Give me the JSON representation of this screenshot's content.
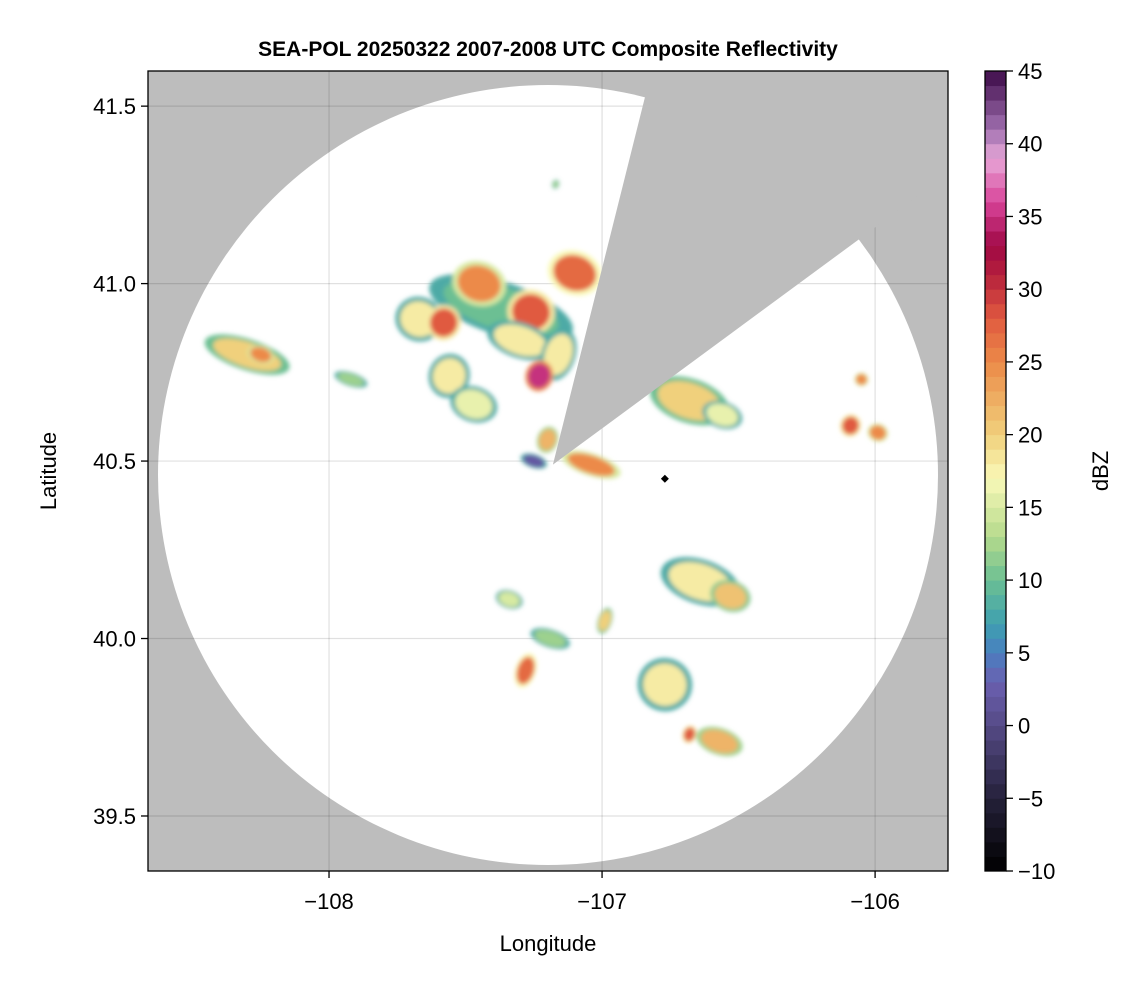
{
  "chart_data": {
    "type": "heatmap",
    "title": "SEA-POL 20250322 2007-2008 UTC Composite Reflectivity",
    "xlabel": "Longitude",
    "ylabel": "Latitude",
    "xlim": [
      -108.663,
      -105.733
    ],
    "ylim": [
      39.345,
      41.599
    ],
    "xticks": [
      -108,
      -107,
      -106
    ],
    "xtick_labels": [
      "−108",
      "−107",
      "−106"
    ],
    "yticks": [
      39.5,
      40.0,
      40.5,
      41.0,
      41.5
    ],
    "ytick_labels": [
      "39.5",
      "40.0",
      "40.5",
      "41.0",
      "41.5"
    ],
    "grid": true,
    "background_color": "#bdbdbd",
    "radar_site": {
      "lon": -107.18,
      "lat": 40.49
    },
    "marker": {
      "lon": -106.77,
      "lat": 40.45,
      "shape": "diamond",
      "color": "#000000"
    },
    "colorbar": {
      "label": "dBZ",
      "range": [
        -10,
        45
      ],
      "ticks": [
        -10,
        -5,
        0,
        5,
        10,
        15,
        20,
        25,
        30,
        35,
        40,
        45
      ],
      "tick_labels": [
        "−10",
        "−5",
        "0",
        "5",
        "10",
        "15",
        "20",
        "25",
        "30",
        "35",
        "40",
        "45"
      ],
      "stops": [
        [
          -10,
          "#000000"
        ],
        [
          -5,
          "#25213a"
        ],
        [
          0,
          "#554a86"
        ],
        [
          3,
          "#6a60b0"
        ],
        [
          5,
          "#4a7fc0"
        ],
        [
          7,
          "#3ea0b0"
        ],
        [
          10,
          "#6cbf93"
        ],
        [
          13,
          "#b5da8c"
        ],
        [
          17,
          "#f9f9b8"
        ],
        [
          20,
          "#f0d07c"
        ],
        [
          25,
          "#ec8a48"
        ],
        [
          28,
          "#e05a40"
        ],
        [
          31,
          "#b5203c"
        ],
        [
          33,
          "#a00845"
        ],
        [
          36,
          "#d8449a"
        ],
        [
          39,
          "#e8a8d8"
        ],
        [
          41,
          "#a070b0"
        ],
        [
          45,
          "#3c0a48"
        ]
      ]
    },
    "echoes": [
      {
        "lon": -108.3,
        "lat": 40.8,
        "dbz": 20,
        "rlon": 0.13,
        "rlat": 0.035
      },
      {
        "lon": -108.25,
        "lat": 40.8,
        "dbz": 25,
        "rlon": 0.04,
        "rlat": 0.02
      },
      {
        "lon": -107.92,
        "lat": 40.73,
        "dbz": 12,
        "rlon": 0.05,
        "rlat": 0.015
      },
      {
        "lon": -107.17,
        "lat": 41.28,
        "dbz": 12,
        "rlon": 0.01,
        "rlat": 0.01
      },
      {
        "lon": -107.37,
        "lat": 40.93,
        "dbz": 10,
        "rlon": 0.22,
        "rlat": 0.06
      },
      {
        "lon": -107.67,
        "lat": 40.9,
        "dbz": 18,
        "rlon": 0.07,
        "rlat": 0.05
      },
      {
        "lon": -107.58,
        "lat": 40.89,
        "dbz": 28,
        "rlon": 0.05,
        "rlat": 0.04
      },
      {
        "lon": -107.45,
        "lat": 41.0,
        "dbz": 25,
        "rlon": 0.08,
        "rlat": 0.05
      },
      {
        "lon": -107.26,
        "lat": 40.92,
        "dbz": 28,
        "rlon": 0.07,
        "rlat": 0.05
      },
      {
        "lon": -107.3,
        "lat": 40.84,
        "dbz": 18,
        "rlon": 0.1,
        "rlat": 0.04
      },
      {
        "lon": -107.1,
        "lat": 41.03,
        "dbz": 27,
        "rlon": 0.08,
        "rlat": 0.05
      },
      {
        "lon": -107.56,
        "lat": 40.74,
        "dbz": 18,
        "rlon": 0.06,
        "rlat": 0.05
      },
      {
        "lon": -107.47,
        "lat": 40.66,
        "dbz": 16,
        "rlon": 0.07,
        "rlat": 0.04
      },
      {
        "lon": -107.16,
        "lat": 40.8,
        "dbz": 18,
        "rlon": 0.05,
        "rlat": 0.06
      },
      {
        "lon": -107.23,
        "lat": 40.74,
        "dbz": 35,
        "rlon": 0.04,
        "rlat": 0.035
      },
      {
        "lon": -107.2,
        "lat": 40.56,
        "dbz": 22,
        "rlon": 0.03,
        "rlat": 0.03
      },
      {
        "lon": -107.25,
        "lat": 40.5,
        "dbz": 2,
        "rlon": 0.04,
        "rlat": 0.015
      },
      {
        "lon": -107.04,
        "lat": 40.49,
        "dbz": 25,
        "rlon": 0.09,
        "rlat": 0.025
      },
      {
        "lon": -106.68,
        "lat": 40.67,
        "dbz": 20,
        "rlon": 0.12,
        "rlat": 0.05
      },
      {
        "lon": -106.56,
        "lat": 40.63,
        "dbz": 16,
        "rlon": 0.06,
        "rlat": 0.03
      },
      {
        "lon": -106.09,
        "lat": 40.6,
        "dbz": 28,
        "rlon": 0.03,
        "rlat": 0.025
      },
      {
        "lon": -105.99,
        "lat": 40.58,
        "dbz": 25,
        "rlon": 0.03,
        "rlat": 0.02
      },
      {
        "lon": -106.05,
        "lat": 40.73,
        "dbz": 25,
        "rlon": 0.02,
        "rlat": 0.015
      },
      {
        "lon": -106.64,
        "lat": 40.16,
        "dbz": 18,
        "rlon": 0.12,
        "rlat": 0.05
      },
      {
        "lon": -106.53,
        "lat": 40.12,
        "dbz": 21,
        "rlon": 0.06,
        "rlat": 0.035
      },
      {
        "lon": -106.77,
        "lat": 39.87,
        "dbz": 18,
        "rlon": 0.08,
        "rlat": 0.06
      },
      {
        "lon": -106.57,
        "lat": 39.71,
        "dbz": 22,
        "rlon": 0.07,
        "rlat": 0.03
      },
      {
        "lon": -106.68,
        "lat": 39.73,
        "dbz": 28,
        "rlon": 0.02,
        "rlat": 0.02
      },
      {
        "lon": -107.28,
        "lat": 39.91,
        "dbz": 27,
        "rlon": 0.03,
        "rlat": 0.04
      },
      {
        "lon": -107.19,
        "lat": 40.0,
        "dbz": 12,
        "rlon": 0.06,
        "rlat": 0.02
      },
      {
        "lon": -107.34,
        "lat": 40.11,
        "dbz": 15,
        "rlon": 0.04,
        "rlat": 0.02
      },
      {
        "lon": -106.99,
        "lat": 40.05,
        "dbz": 20,
        "rlon": 0.02,
        "rlat": 0.03
      }
    ]
  }
}
